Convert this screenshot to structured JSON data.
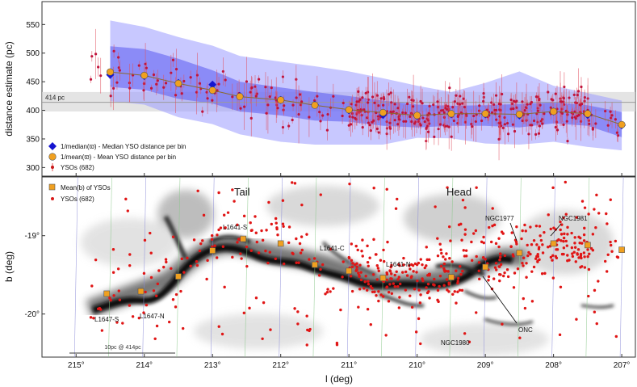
{
  "figure": {
    "x_label": "l (deg)",
    "x_ticks": [
      "215°",
      "214°",
      "213°",
      "212°",
      "211°",
      "210°",
      "209°",
      "208°",
      "207°"
    ],
    "x_tick_values": [
      215,
      214,
      213,
      212,
      211,
      210,
      209,
      208,
      207
    ],
    "x_range": [
      215.5,
      206.8
    ]
  },
  "chart_data": [
    {
      "type": "scatter",
      "panel": "distance",
      "ylabel": "distance estimate (pc)",
      "ylim": [
        285,
        590
      ],
      "y_ticks": [
        300,
        350,
        400,
        450,
        500,
        550
      ],
      "reference_line": {
        "value": 414,
        "label": "414 pc",
        "band": [
          398,
          432
        ]
      },
      "legend_position": "lower-left",
      "series": [
        {
          "name": "1/median(ϖ) - Median YSO distance per bin",
          "marker": "diamond",
          "color": "#1515d0",
          "x": [
            214.5,
            214,
            213.5,
            213,
            212.6,
            212,
            211.5,
            211,
            210.5,
            210,
            209.5,
            209,
            208.5,
            208,
            207.5,
            207
          ],
          "values": [
            462,
            460,
            448,
            445,
            425,
            418,
            410,
            400,
            392,
            390,
            393,
            393,
            391,
            398,
            392,
            374
          ]
        },
        {
          "name": "1/mean(ϖ) - Mean YSO distance per bin",
          "marker": "circle",
          "color": "#f0a020",
          "x": [
            214.5,
            214,
            213.5,
            213,
            212.6,
            212,
            211.5,
            211,
            210.5,
            210,
            209.5,
            209,
            208.5,
            208,
            207.5,
            207
          ],
          "values": [
            467,
            461,
            447,
            435,
            424,
            418,
            409,
            401,
            396,
            391,
            394,
            394,
            393,
            398,
            394,
            375
          ]
        },
        {
          "name": "YSOs (682)",
          "marker": "dot",
          "color": "#d81818"
        }
      ],
      "bands": {
        "outer_upper": [
          557,
          546,
          528,
          513,
          495,
          485,
          477,
          468,
          456,
          443,
          432,
          448,
          468,
          443,
          430,
          417
        ],
        "outer_lower": [
          416,
          410,
          388,
          376,
          358,
          345,
          340,
          340,
          340,
          352,
          351,
          342,
          340,
          345,
          336,
          330
        ],
        "inner_upper": [
          512,
          507,
          490,
          470,
          450,
          440,
          432,
          425,
          417,
          410,
          408,
          409,
          411,
          414,
          409,
          397
        ],
        "inner_lower": [
          441,
          436,
          420,
          412,
          398,
          391,
          382,
          380,
          373,
          370,
          373,
          373,
          370,
          377,
          373,
          353
        ]
      }
    },
    {
      "type": "scatter",
      "panel": "map",
      "ylabel": "b (deg)",
      "y_ticks": [
        "-19°",
        "-20°"
      ],
      "y_tick_values": [
        -19,
        -20
      ],
      "ylim": [
        -20.55,
        -18.25
      ],
      "legend_position": "top-left",
      "series": [
        {
          "name": "Mean(b) of YSOs",
          "marker": "square",
          "color": "#f0a020",
          "x": [
            214.55,
            214.05,
            213.5,
            213.0,
            212.55,
            212.0,
            211.5,
            211.0,
            210.5,
            209.5,
            209.0,
            208.5,
            208.0,
            207.5,
            207.0
          ],
          "values": [
            -19.74,
            -19.71,
            -19.52,
            -19.19,
            -19.04,
            -19.1,
            -19.37,
            -19.45,
            -19.54,
            -19.53,
            -19.4,
            -19.22,
            -19.1,
            -19.12,
            -19.18
          ]
        },
        {
          "name": "YSOs (682)",
          "marker": "dot",
          "color": "#d81818"
        }
      ],
      "annotations": [
        "Tail",
        "Head",
        "L1641-S",
        "L1641-C",
        "L1641-N",
        "L1647-S",
        "L1647-N",
        "NGC1977",
        "NGC1981",
        "ONC",
        "NGC1980"
      ],
      "scale_bar_label": "10pc @ 414pc"
    }
  ]
}
